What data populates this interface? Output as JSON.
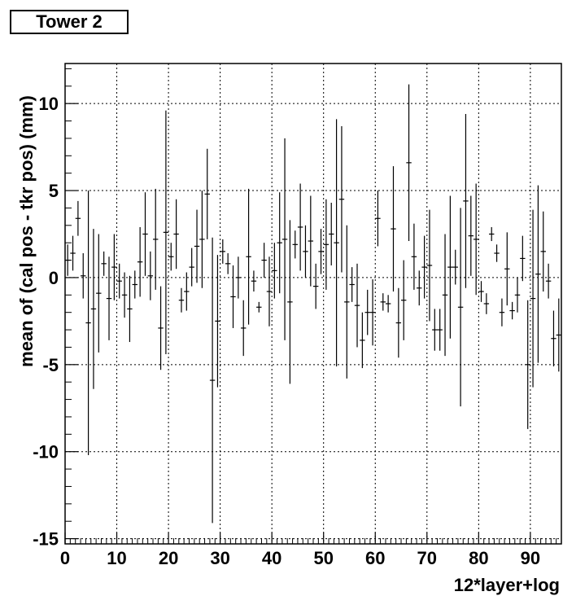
{
  "chart_data": {
    "type": "scatter",
    "title": "Tower 2",
    "xlabel": "12*layer+log",
    "ylabel": "mean of (cal pos - tkr pos) (mm)",
    "xlim": [
      0,
      96
    ],
    "ylim": [
      -15.3,
      12.3
    ],
    "x_ticks": [
      0,
      10,
      20,
      30,
      40,
      50,
      60,
      70,
      80,
      90
    ],
    "y_ticks": [
      -15,
      -10,
      -5,
      0,
      5,
      10
    ],
    "grid": true,
    "error_bars": true,
    "points": [
      {
        "x": 0.5,
        "y": 1.0,
        "err": 0.9
      },
      {
        "x": 1.5,
        "y": 1.4,
        "err": 1.0
      },
      {
        "x": 2.5,
        "y": 3.4,
        "err": 1.0
      },
      {
        "x": 3.5,
        "y": 0.1,
        "err": 1.3
      },
      {
        "x": 4.5,
        "y": -2.6,
        "err": 7.6
      },
      {
        "x": 5.5,
        "y": -1.8,
        "err": 4.6
      },
      {
        "x": 6.5,
        "y": -0.9,
        "err": 3.4
      },
      {
        "x": 7.5,
        "y": 0.8,
        "err": 0.7
      },
      {
        "x": 8.5,
        "y": -1.2,
        "err": 2.4
      },
      {
        "x": 9.5,
        "y": 0.6,
        "err": 1.9
      },
      {
        "x": 10.5,
        "y": -0.2,
        "err": 1.0
      },
      {
        "x": 11.5,
        "y": -1.0,
        "err": 1.3
      },
      {
        "x": 12.5,
        "y": -1.8,
        "err": 1.9
      },
      {
        "x": 13.5,
        "y": -0.4,
        "err": 0.8
      },
      {
        "x": 14.5,
        "y": 0.9,
        "err": 2.0
      },
      {
        "x": 15.5,
        "y": 2.5,
        "err": 2.4
      },
      {
        "x": 16.5,
        "y": 0.1,
        "err": 1.4
      },
      {
        "x": 17.5,
        "y": 2.2,
        "err": 2.9
      },
      {
        "x": 18.5,
        "y": -2.9,
        "err": 2.4
      },
      {
        "x": 19.5,
        "y": 2.6,
        "err": 7.0
      },
      {
        "x": 20.5,
        "y": 1.2,
        "err": 0.8
      },
      {
        "x": 21.5,
        "y": 2.5,
        "err": 2.0
      },
      {
        "x": 22.5,
        "y": -1.3,
        "err": 0.7
      },
      {
        "x": 23.5,
        "y": -0.8,
        "err": 1.1
      },
      {
        "x": 24.5,
        "y": 0.6,
        "err": 1.1
      },
      {
        "x": 25.5,
        "y": 1.8,
        "err": 2.1
      },
      {
        "x": 26.5,
        "y": 2.2,
        "err": 2.8
      },
      {
        "x": 27.5,
        "y": 4.8,
        "err": 2.6
      },
      {
        "x": 28.5,
        "y": -5.9,
        "err": 8.2
      },
      {
        "x": 29.5,
        "y": -2.5,
        "err": 3.8
      },
      {
        "x": 30.5,
        "y": 1.5,
        "err": 0.7
      },
      {
        "x": 31.5,
        "y": 0.8,
        "err": 0.6
      },
      {
        "x": 32.5,
        "y": -1.1,
        "err": 1.8
      },
      {
        "x": 33.5,
        "y": 0.0,
        "err": 1.2
      },
      {
        "x": 34.5,
        "y": -2.9,
        "err": 1.6
      },
      {
        "x": 35.5,
        "y": 1.2,
        "err": 3.9
      },
      {
        "x": 36.5,
        "y": -0.2,
        "err": 0.6
      },
      {
        "x": 37.5,
        "y": -1.7,
        "err": 0.3
      },
      {
        "x": 38.5,
        "y": 1.0,
        "err": 1.0
      },
      {
        "x": 39.5,
        "y": -0.8,
        "err": 2.0
      },
      {
        "x": 40.5,
        "y": 0.4,
        "err": 1.6
      },
      {
        "x": 41.5,
        "y": 2.0,
        "err": 2.9
      },
      {
        "x": 42.5,
        "y": 2.2,
        "err": 5.8
      },
      {
        "x": 43.5,
        "y": -1.4,
        "err": 4.7
      },
      {
        "x": 44.5,
        "y": 1.9,
        "err": 0.8
      },
      {
        "x": 45.5,
        "y": 2.9,
        "err": 2.5
      },
      {
        "x": 46.5,
        "y": 1.5,
        "err": 1.5
      },
      {
        "x": 47.5,
        "y": 2.1,
        "err": 2.6
      },
      {
        "x": 48.5,
        "y": -0.5,
        "err": 1.3
      },
      {
        "x": 49.5,
        "y": 1.5,
        "err": 1.3
      },
      {
        "x": 50.5,
        "y": 1.9,
        "err": 2.6
      },
      {
        "x": 51.5,
        "y": 2.5,
        "err": 1.8
      },
      {
        "x": 52.5,
        "y": 2.0,
        "err": 7.1
      },
      {
        "x": 53.5,
        "y": 4.5,
        "err": 4.2
      },
      {
        "x": 54.5,
        "y": -1.4,
        "err": 4.4
      },
      {
        "x": 55.5,
        "y": -0.4,
        "err": 1.0
      },
      {
        "x": 56.5,
        "y": -1.6,
        "err": 2.4
      },
      {
        "x": 57.5,
        "y": -3.6,
        "err": 1.6
      },
      {
        "x": 58.5,
        "y": -2.0,
        "err": 1.3
      },
      {
        "x": 59.5,
        "y": -2.0,
        "err": 1.9
      },
      {
        "x": 60.5,
        "y": 3.4,
        "err": 1.6
      },
      {
        "x": 61.5,
        "y": -1.4,
        "err": 0.5
      },
      {
        "x": 62.5,
        "y": -1.5,
        "err": 0.5
      },
      {
        "x": 63.5,
        "y": 2.8,
        "err": 3.6
      },
      {
        "x": 64.5,
        "y": -2.6,
        "err": 2.0
      },
      {
        "x": 65.5,
        "y": -1.3,
        "err": 2.3
      },
      {
        "x": 66.5,
        "y": 6.6,
        "err": 4.5
      },
      {
        "x": 67.5,
        "y": 1.2,
        "err": 1.9
      },
      {
        "x": 68.5,
        "y": -0.6,
        "err": 1.0
      },
      {
        "x": 69.5,
        "y": 0.6,
        "err": 1.8
      },
      {
        "x": 70.5,
        "y": 0.7,
        "err": 3.2
      },
      {
        "x": 71.5,
        "y": -3.0,
        "err": 1.2
      },
      {
        "x": 72.5,
        "y": -3.0,
        "err": 1.2
      },
      {
        "x": 73.5,
        "y": -1.0,
        "err": 3.5
      },
      {
        "x": 74.5,
        "y": 0.6,
        "err": 4.1
      },
      {
        "x": 75.5,
        "y": 0.6,
        "err": 1.0
      },
      {
        "x": 76.5,
        "y": -1.7,
        "err": 5.7
      },
      {
        "x": 77.5,
        "y": 4.4,
        "err": 5.0
      },
      {
        "x": 78.5,
        "y": 2.4,
        "err": 2.3
      },
      {
        "x": 79.5,
        "y": 2.2,
        "err": 3.2
      },
      {
        "x": 80.5,
        "y": -0.8,
        "err": 0.6
      },
      {
        "x": 81.5,
        "y": -1.5,
        "err": 0.6
      },
      {
        "x": 82.5,
        "y": 2.5,
        "err": 0.4
      },
      {
        "x": 83.5,
        "y": 1.4,
        "err": 0.5
      },
      {
        "x": 84.5,
        "y": -2.0,
        "err": 0.8
      },
      {
        "x": 85.5,
        "y": 0.5,
        "err": 2.1
      },
      {
        "x": 86.5,
        "y": -1.9,
        "err": 0.5
      },
      {
        "x": 87.5,
        "y": -1.0,
        "err": 1.0
      },
      {
        "x": 88.5,
        "y": 1.1,
        "err": 1.3
      },
      {
        "x": 89.5,
        "y": -5.0,
        "err": 3.7
      },
      {
        "x": 90.5,
        "y": -1.2,
        "err": 5.1
      },
      {
        "x": 91.5,
        "y": 0.2,
        "err": 5.1
      },
      {
        "x": 92.5,
        "y": 1.5,
        "err": 2.3
      },
      {
        "x": 93.5,
        "y": -0.2,
        "err": 1.0
      },
      {
        "x": 94.5,
        "y": -3.5,
        "err": 1.6
      },
      {
        "x": 95.5,
        "y": -3.3,
        "err": 2.1
      }
    ]
  }
}
